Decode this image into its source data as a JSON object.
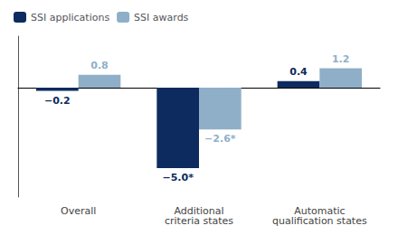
{
  "chart_data": {
    "type": "bar",
    "categories": [
      "Overall",
      "Additional\ncriteria states",
      "Automatic\nqualification states"
    ],
    "series": [
      {
        "name": "SSI applications",
        "color": "#0d2b5e",
        "values": [
          -0.2,
          -5.0,
          0.4
        ],
        "value_labels": [
          "−0.2",
          "−5.0*",
          "0.4"
        ]
      },
      {
        "name": "SSI awards",
        "color": "#8fafc8",
        "values": [
          0.8,
          -2.6,
          1.2
        ],
        "value_labels": [
          "0.8",
          "−2.6*",
          "1.2"
        ]
      }
    ],
    "ylim": [
      -6.8,
      3.2
    ],
    "tick_labels": "x",
    "grid": false,
    "legend": "upper left",
    "data_labels": true
  }
}
